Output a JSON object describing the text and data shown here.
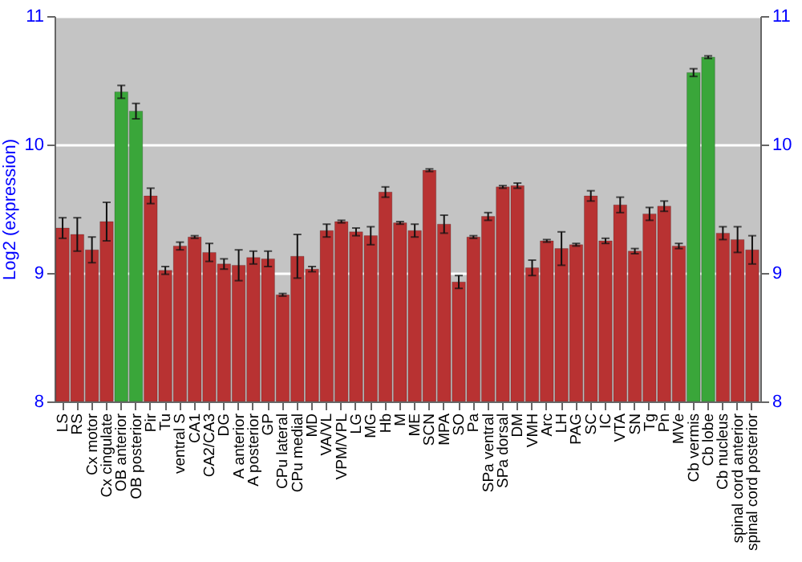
{
  "chart_data": {
    "type": "bar",
    "ylabel": "Log2 (expression)",
    "categories": [
      "LS",
      "RS",
      "Cx motor",
      "Cx cingulate",
      "OB anterior",
      "OB posterior",
      "Pir",
      "Tu",
      "ventral S",
      "CA1",
      "CA2/CA3",
      "DG",
      "A anterior",
      "A posterior",
      "GP",
      "CPu lateral",
      "CPu medial",
      "MD",
      "VA/VL",
      "VPM/VPL",
      "LG",
      "MG",
      "Hb",
      "M",
      "ME",
      "SCN",
      "MPA",
      "SO",
      "Pa",
      "SPa ventral",
      "SPa dorsal",
      "DM",
      "VMH",
      "Arc",
      "LH",
      "PAG",
      "SC",
      "IC",
      "VTA",
      "SN",
      "Tg",
      "Pn",
      "MVe",
      "Cb vermis",
      "Cb lobe",
      "Cb nucleus",
      "spinal cord anterior",
      "spinal cord posterior"
    ],
    "values": [
      9.35,
      9.3,
      9.18,
      9.4,
      10.41,
      10.26,
      9.6,
      9.02,
      9.21,
      9.28,
      9.16,
      9.07,
      9.06,
      9.12,
      9.11,
      8.83,
      9.13,
      9.03,
      9.33,
      9.4,
      9.32,
      9.29,
      9.63,
      9.39,
      9.33,
      9.8,
      9.38,
      8.93,
      9.28,
      9.44,
      9.67,
      9.68,
      9.04,
      9.25,
      9.19,
      9.22,
      9.6,
      9.25,
      9.53,
      9.17,
      9.46,
      9.52,
      9.21,
      10.56,
      10.68,
      9.31,
      9.26,
      9.18
    ],
    "errors": [
      0.08,
      0.13,
      0.1,
      0.15,
      0.05,
      0.06,
      0.06,
      0.03,
      0.03,
      0.01,
      0.07,
      0.04,
      0.12,
      0.05,
      0.06,
      0.01,
      0.17,
      0.02,
      0.05,
      0.01,
      0.03,
      0.07,
      0.04,
      0.01,
      0.05,
      0.01,
      0.07,
      0.05,
      0.01,
      0.03,
      0.01,
      0.02,
      0.06,
      0.01,
      0.13,
      0.01,
      0.04,
      0.02,
      0.06,
      0.02,
      0.05,
      0.04,
      0.02,
      0.03,
      0.01,
      0.05,
      0.1,
      0.11
    ],
    "colors": [
      "#b83232",
      "#b83232",
      "#b83232",
      "#b83232",
      "#3aa63a",
      "#3aa63a",
      "#b83232",
      "#b83232",
      "#b83232",
      "#b83232",
      "#b83232",
      "#b83232",
      "#b83232",
      "#b83232",
      "#b83232",
      "#b83232",
      "#b83232",
      "#b83232",
      "#b83232",
      "#b83232",
      "#b83232",
      "#b83232",
      "#b83232",
      "#b83232",
      "#b83232",
      "#b83232",
      "#b83232",
      "#b83232",
      "#b83232",
      "#b83232",
      "#b83232",
      "#b83232",
      "#b83232",
      "#b83232",
      "#b83232",
      "#b83232",
      "#b83232",
      "#b83232",
      "#b83232",
      "#b83232",
      "#b83232",
      "#b83232",
      "#b83232",
      "#3aa63a",
      "#3aa63a",
      "#b83232",
      "#b83232",
      "#b83232"
    ],
    "ylim": [
      8,
      11
    ],
    "yticks": [
      8,
      9,
      10,
      11
    ],
    "y2lim": [
      8,
      11
    ],
    "y2ticks": [
      8,
      9,
      10,
      11
    ],
    "grid": "y"
  }
}
